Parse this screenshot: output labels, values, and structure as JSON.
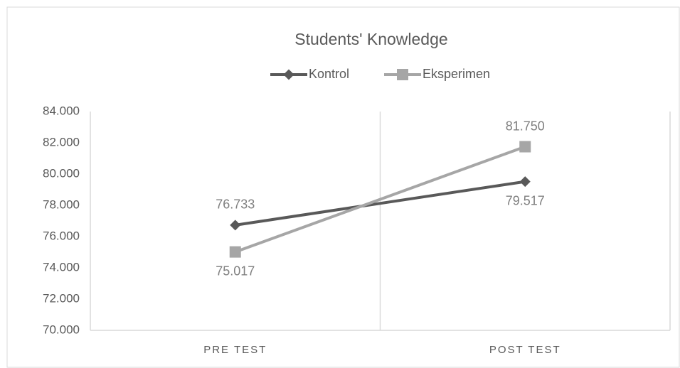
{
  "chart_data": {
    "type": "line",
    "title": "Students' Knowledge",
    "categories": [
      "PRE TEST",
      "POST TEST"
    ],
    "series": [
      {
        "name": "Kontrol",
        "color": "#595959",
        "marker": "diamond",
        "values": [
          76.733,
          79.517
        ],
        "value_labels": [
          "76.733",
          "79.517"
        ]
      },
      {
        "name": "Eksperimen",
        "color": "#a6a6a6",
        "marker": "square",
        "values": [
          75.017,
          81.75
        ],
        "value_labels": [
          "75.017",
          "81.750"
        ]
      }
    ],
    "ylim": [
      70,
      84
    ],
    "yticks": [
      {
        "value": 70,
        "label": "70.000"
      },
      {
        "value": 72,
        "label": "72.000"
      },
      {
        "value": 74,
        "label": "74.000"
      },
      {
        "value": 76,
        "label": "76.000"
      },
      {
        "value": 78,
        "label": "78.000"
      },
      {
        "value": 80,
        "label": "80.000"
      },
      {
        "value": 82,
        "label": "82.000"
      },
      {
        "value": 84,
        "label": "84.000"
      }
    ],
    "grid": "x",
    "legend": "top"
  }
}
